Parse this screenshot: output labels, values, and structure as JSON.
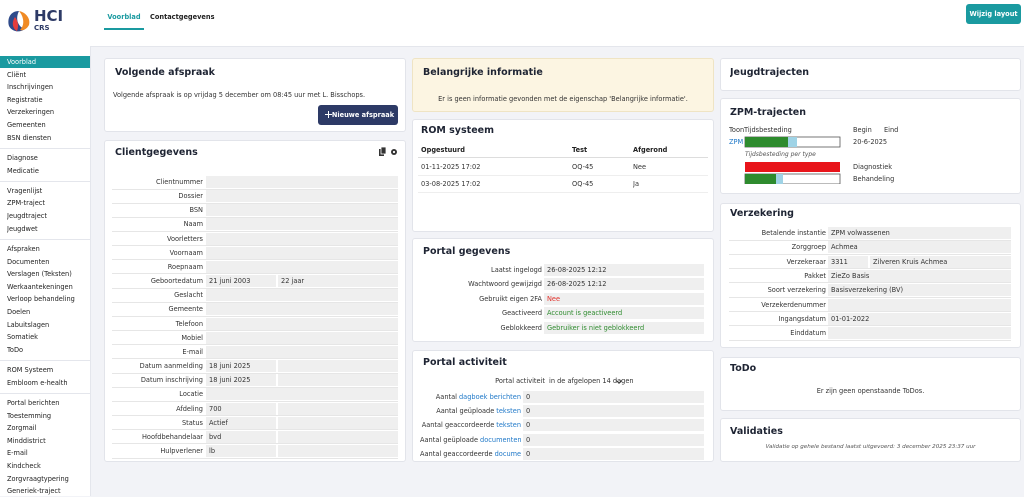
{
  "logo": {
    "name": "HCI",
    "sub": "CRS"
  },
  "tabs": [
    "Voorblad",
    "Contactgegevens"
  ],
  "button": "Wijzig layout",
  "sidebar": [
    [
      "Voorblad",
      "Cliënt",
      "Inschrijvingen",
      "Registratie",
      "Verzekeringen",
      "Gemeenten",
      "BSN diensten"
    ],
    [
      "Diagnose",
      "Medicatie"
    ],
    [
      "Vragenlijst",
      "ZPM-traject",
      "Jeugdtraject",
      "Jeugdwet"
    ],
    [
      "Afspraken",
      "Documenten",
      "Verslagen (Teksten)",
      "Werkaantekeningen",
      "Verloop behandeling",
      "Doelen",
      "Labuitslagen",
      "Somatiek",
      "ToDo"
    ],
    [
      "ROM Systeem",
      "Embloom e-health"
    ],
    [
      "Portal berichten",
      "Toestemming",
      "Zorgmail",
      "Minddistrict",
      "E-mail",
      "Kindcheck",
      "Zorgvraagtypering",
      "Generiek-traject"
    ]
  ],
  "next_appointment": {
    "title": "Volgende afspraak",
    "text": "Volgende afspraak is op vrijdag 5 december om 08:45 uur met L. Bisschops.",
    "button": "Nieuwe afspraak"
  },
  "client": {
    "title": "Clientgegevens",
    "rows": [
      {
        "label": "Clientnummer"
      },
      {
        "label": "Dossier"
      },
      {
        "label": "BSN"
      },
      {
        "label": "Naam"
      },
      {
        "label": "Voorletters"
      },
      {
        "label": "Voornaam"
      },
      {
        "label": "Roepnaam"
      },
      {
        "label": "Geboortedatum",
        "values": [
          "21 juni 2003",
          "22 jaar"
        ]
      },
      {
        "label": "Geslacht"
      },
      {
        "label": "Gemeente"
      },
      {
        "label": "Telefoon"
      },
      {
        "label": "Mobiel"
      },
      {
        "label": "E-mail"
      },
      {
        "label": "Datum aanmelding",
        "values": [
          "18 juni 2025"
        ]
      },
      {
        "label": "Datum inschrijving",
        "values": [
          "18 juni 2025"
        ]
      },
      {
        "label": "Locatie"
      },
      {
        "label": "Afdeling",
        "values": [
          "700"
        ]
      },
      {
        "label": "Status",
        "values": [
          "Actief"
        ]
      },
      {
        "label": "Hoofdbehandelaar",
        "values": [
          "bvd"
        ]
      },
      {
        "label": "Hulpverlener",
        "values": [
          "lb"
        ]
      }
    ]
  },
  "important": {
    "title": "Belangrijke informatie",
    "text": "Er is geen informatie gevonden met de eigenschap 'Belangrijke informatie'."
  },
  "rom": {
    "title": "ROM systeem",
    "headers": [
      "Opgestuurd",
      "Test",
      "Afgerond"
    ],
    "rows": [
      [
        "01-11-2025 17:02",
        "OQ-45",
        "Nee"
      ],
      [
        "03-08-2025 17:02",
        "OQ-45",
        "Ja"
      ]
    ]
  },
  "portal": {
    "title": "Portal gegevens",
    "rows": [
      {
        "label": "Laatst ingelogd",
        "value": "26-08-2025 12:12"
      },
      {
        "label": "Wachtwoord gewijzigd",
        "value": "26-08-2025 12:12"
      },
      {
        "label": "Gebruikt eigen 2FA",
        "value": "Nee",
        "color": "#e0302a"
      },
      {
        "label": "Geactiveerd",
        "value": "Account is geactiveerd",
        "color": "#2e8b2e"
      },
      {
        "label": "Geblokkeerd",
        "value": "Gebruiker is niet geblokkeerd",
        "color": "#2e8b2e"
      }
    ]
  },
  "activity": {
    "title": "Portal activiteit",
    "filter_label": "Portal activiteit",
    "filter": "in de afgelopen 14 dagen",
    "rows": [
      {
        "prefix": "Aantal",
        "link": "dagboek berichten",
        "value": 0
      },
      {
        "prefix": "Aantal geüploade",
        "link": "teksten",
        "value": 0
      },
      {
        "prefix": "Aantal geaccordeerde",
        "link": "teksten",
        "value": 0
      },
      {
        "prefix": "Aantal geüploade",
        "link": "documenten",
        "value": 0
      },
      {
        "prefix": "Aantal geaccordeerde",
        "link": "documenten",
        "value": 0
      }
    ]
  },
  "youth": {
    "title": "Jeugdtrajecten"
  },
  "zpm": {
    "title": "ZPM-trajecten",
    "headers": [
      "Toon",
      "Tijdsbesteding",
      "Begin",
      "Eind"
    ],
    "row": {
      "name": "ZPM",
      "begin": "20-6-2025"
    },
    "per_type": "Tijdsbesteding per type",
    "types": [
      "Diagnostiek",
      "Behandeling"
    ]
  },
  "insurance": {
    "title": "Verzekering",
    "rows": [
      {
        "label": "Betalende instantie",
        "values": [
          "ZPM volwassenen"
        ]
      },
      {
        "label": "Zorggroep",
        "values": [
          "Achmea"
        ]
      },
      {
        "label": "Verzekeraar",
        "values": [
          "3311",
          "Zilveren Kruis Achmea"
        ]
      },
      {
        "label": "Pakket",
        "values": [
          "ZieZo Basis"
        ]
      },
      {
        "label": "Soort verzekering",
        "values": [
          "Basisverzekering (BV)"
        ]
      },
      {
        "label": "Verzekerdenummer"
      },
      {
        "label": "Ingangsdatum",
        "values": [
          "01-01-2022"
        ]
      },
      {
        "label": "Einddatum"
      }
    ]
  },
  "todo": {
    "title": "ToDo",
    "text": "Er zijn geen openstaande ToDos."
  },
  "validations": {
    "title": "Validaties",
    "text": "Validatie op gehele bestand laatst uitgevoerd: 3 december 2025 23:37 uur"
  }
}
